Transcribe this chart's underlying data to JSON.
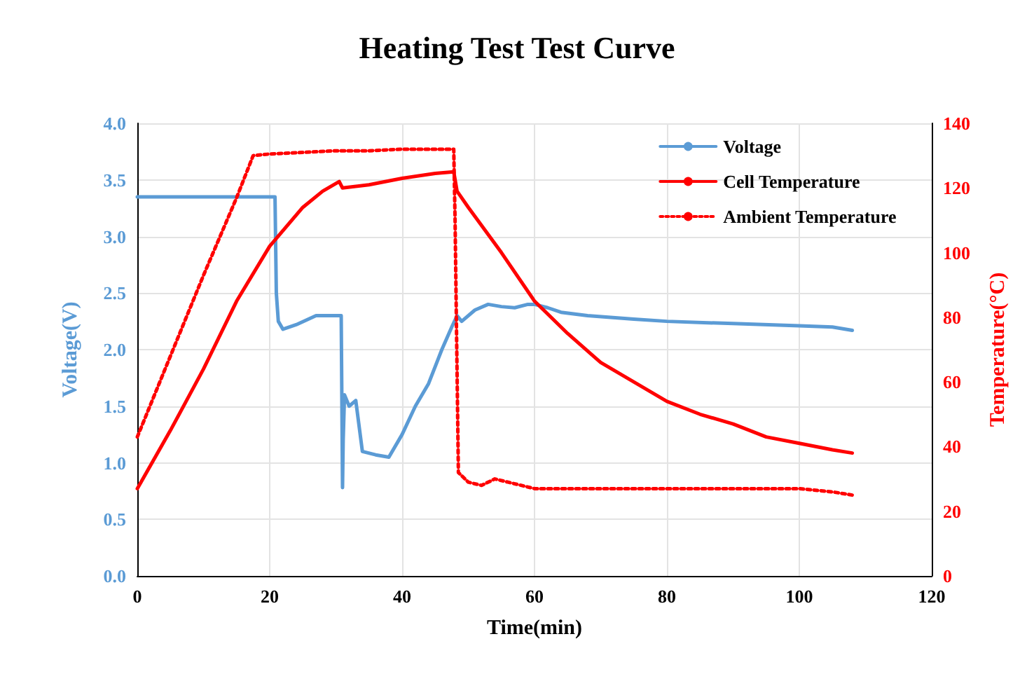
{
  "chart_data": {
    "type": "line",
    "title": "Heating Test Test Curve",
    "xlabel": "Time(min)",
    "ylabel": "Voltage(V)",
    "y2label": "Temperature(°C)",
    "xlim": [
      0,
      120
    ],
    "xticks": [
      0,
      20,
      40,
      60,
      80,
      100,
      120
    ],
    "ylim": [
      0,
      4
    ],
    "yticks": [
      {
        "value": 0,
        "label": "0.0"
      },
      {
        "value": 0.5,
        "label": "0.5"
      },
      {
        "value": 1,
        "label": "1.0"
      },
      {
        "value": 1.5,
        "label": "1.5"
      },
      {
        "value": 2,
        "label": "2.0"
      },
      {
        "value": 2.5,
        "label": "2.5"
      },
      {
        "value": 3,
        "label": "3.0"
      },
      {
        "value": 3.5,
        "label": "3.5"
      },
      {
        "value": 4,
        "label": "4.0"
      }
    ],
    "y2lim": [
      0,
      140
    ],
    "y2ticks": [
      0,
      20,
      40,
      60,
      80,
      100,
      120,
      140
    ],
    "grid": true,
    "legend": "top right",
    "marker": "none",
    "series": [
      {
        "name": "Voltage",
        "color": "#5b9bd5",
        "line_style": "solid",
        "x": [
          0,
          10,
          20.8,
          21,
          21.3,
          22,
          24,
          27,
          30.8,
          31,
          31.1,
          31.3,
          32,
          33,
          34,
          36,
          38,
          40,
          42,
          44,
          46,
          47.5,
          48.3,
          49,
          51,
          53,
          55,
          57,
          59,
          60,
          62,
          64,
          68,
          75,
          80,
          90,
          100,
          105,
          108
        ],
        "values": [
          3.35,
          3.35,
          3.35,
          2.5,
          2.25,
          2.18,
          2.22,
          2.3,
          2.3,
          0.78,
          1.2,
          1.6,
          1.5,
          1.55,
          1.1,
          1.07,
          1.05,
          1.25,
          1.5,
          1.7,
          2.0,
          2.2,
          2.3,
          2.25,
          2.35,
          2.4,
          2.38,
          2.37,
          2.4,
          2.4,
          2.37,
          2.33,
          2.3,
          2.27,
          2.25,
          2.23,
          2.21,
          2.2,
          2.17
        ]
      },
      {
        "name": "Cell Temperature",
        "color": "#ff0000",
        "line_style": "solid",
        "axis": "y2",
        "x": [
          0,
          5,
          10,
          15,
          20,
          25,
          28,
          30.5,
          31,
          35,
          40,
          45,
          47.8,
          48.3,
          50,
          55,
          60,
          65,
          70,
          75,
          80,
          85,
          90,
          95,
          100,
          105,
          108
        ],
        "values": [
          27,
          45,
          64,
          85,
          102,
          114,
          119,
          122,
          120,
          121,
          123,
          124.5,
          125,
          119,
          114,
          100,
          85,
          75,
          66,
          60,
          54,
          50,
          47,
          43,
          41,
          39,
          38
        ]
      },
      {
        "name": "Ambient Temperature",
        "color": "#ff0000",
        "line_style": "dotted",
        "axis": "y2",
        "x": [
          0,
          5,
          10,
          15,
          17.5,
          20,
          25,
          30,
          35,
          40,
          47.8,
          48,
          48.5,
          50,
          52,
          54,
          56,
          60,
          65,
          70,
          75,
          80,
          85,
          90,
          95,
          100,
          105,
          108
        ],
        "values": [
          43,
          68,
          93,
          117,
          130,
          130.5,
          131,
          131.5,
          131.5,
          132,
          132,
          110,
          32,
          29,
          28,
          30,
          29,
          27,
          27,
          27,
          27,
          27,
          27,
          27,
          27,
          27,
          26,
          25
        ]
      }
    ]
  }
}
